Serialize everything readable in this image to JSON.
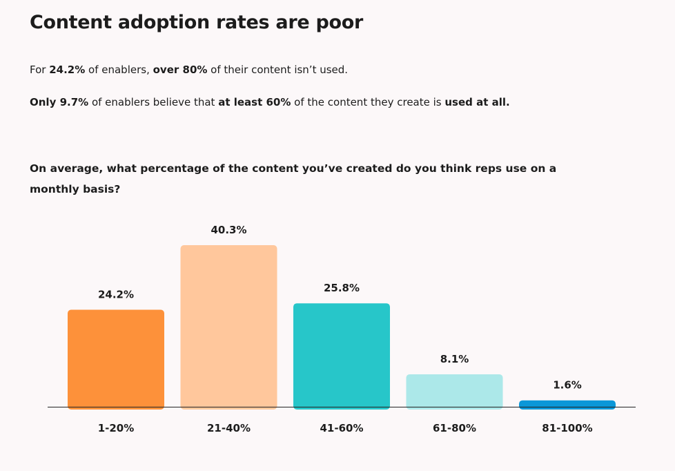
{
  "heading": "Content adoption rates are poor",
  "para1": {
    "t1": "For ",
    "b1": "24.2%",
    "t2": " of enablers, ",
    "b2": "over 80%",
    "t3": " of their content isn’t used."
  },
  "para2": {
    "b1": "Only 9.7%",
    "t1": " of enablers believe that ",
    "b2": "at least 60%",
    "t2": " of the content they create is ",
    "b3": "used at all."
  },
  "question": "On average, what percentage of the content you’ve created do you think reps use on a monthly basis?",
  "chart_data": {
    "type": "bar",
    "categories": [
      "1-20%",
      "21-40%",
      "41-60%",
      "61-80%",
      "81-100%"
    ],
    "values": [
      24.2,
      40.3,
      25.8,
      8.1,
      1.6
    ],
    "value_labels": [
      "24.2%",
      "40.3%",
      "25.8%",
      "8.1%",
      "1.6%"
    ],
    "colors": [
      "#fd913a",
      "#ffc79c",
      "#27c6c9",
      "#ace8e9",
      "#0b97d8"
    ],
    "title": "",
    "xlabel": "",
    "ylabel": "",
    "ylim": [
      0,
      46.5
    ],
    "grid": false,
    "legend": "none"
  }
}
